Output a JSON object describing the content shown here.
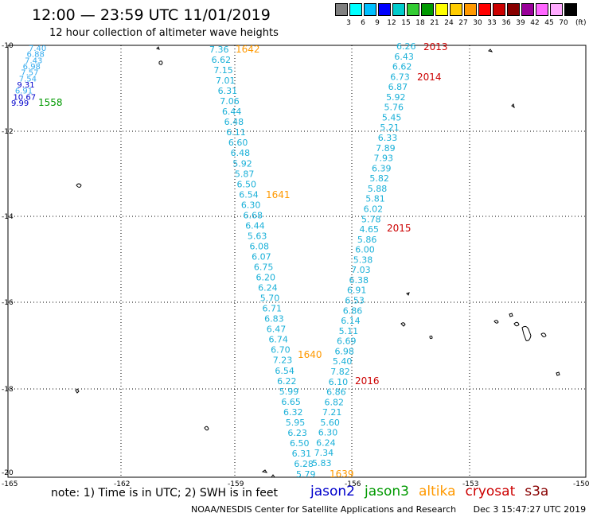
{
  "header": {
    "title": "12:00 — 23:59 UTC 11/01/2019",
    "subtitle": "12 hour collection of altimeter wave heights"
  },
  "legend": {
    "labels": [
      "3",
      "6",
      "9",
      "12",
      "15",
      "18",
      "21",
      "24",
      "27",
      "30",
      "33",
      "36",
      "39",
      "42",
      "45",
      "70"
    ],
    "unit": "(ft)",
    "colors": [
      "#808080",
      "#00ffff",
      "#00bfff",
      "#0000ff",
      "#00cccc",
      "#33cc33",
      "#009900",
      "#ffff00",
      "#ffcc00",
      "#ff9900",
      "#ff0000",
      "#cc0000",
      "#880000",
      "#990099",
      "#ff66ff",
      "#ffaaff",
      "#000000"
    ]
  },
  "map": {
    "y_ticks": [
      "-10",
      "-12",
      "-14",
      "-16",
      "-18",
      "-20"
    ],
    "x_ticks": [
      "-165",
      "-162",
      "-159",
      "-156",
      "-153",
      "-150"
    ],
    "pass_times": [
      {
        "label": "1558",
        "sat": "jason3"
      },
      {
        "label": "1642",
        "sat": "altika"
      },
      {
        "label": "1641",
        "sat": "altika"
      },
      {
        "label": "1640",
        "sat": "altika"
      },
      {
        "label": "1639",
        "sat": "altika"
      },
      {
        "label": "2013",
        "sat": "cryosat"
      },
      {
        "label": "2014",
        "sat": "cryosat"
      },
      {
        "label": "2015",
        "sat": "cryosat"
      },
      {
        "label": "2016",
        "sat": "cryosat"
      }
    ],
    "track_nw": [
      "7.40",
      "6.88",
      "7.43",
      "6.98",
      "7.57",
      "7.54",
      "9.31",
      "6.91",
      "10.67",
      "9.99"
    ],
    "track_a": [
      "7.36",
      "6.62",
      "7.15",
      "7.01",
      "6.31",
      "7.06",
      "6.44",
      "6.48",
      "6.11",
      "6.60",
      "6.48",
      "5.92",
      "5.87",
      "6.50",
      "6.54",
      "6.30",
      "6.68",
      "6.44",
      "5.63",
      "6.08",
      "6.07",
      "6.75",
      "6.20",
      "6.24",
      "5.70",
      "6.71",
      "6.83",
      "6.47",
      "6.74",
      "6.70",
      "7.23",
      "6.54",
      "6.22",
      "5.99",
      "6.65",
      "6.32",
      "5.95",
      "6.23",
      "6.50",
      "6.31",
      "6.28",
      "5.79"
    ],
    "track_b": [
      "6.26",
      "6.43",
      "6.62",
      "6.73",
      "6.87",
      "5.92",
      "5.76",
      "5.45",
      "5.21",
      "6.33",
      "7.89",
      "7.93",
      "6.39",
      "5.82",
      "5.88",
      "5.81",
      "6.02",
      "5.78",
      "4.65",
      "5.86",
      "6.00",
      "5.38",
      "7.03",
      "6.38",
      "6.91",
      "6.53",
      "6.86",
      "6.14",
      "5.11",
      "6.69",
      "6.98",
      "5.40",
      "7.82",
      "6.10",
      "6.86",
      "6.82",
      "7.21",
      "5.60",
      "6.30",
      "6.24",
      "7.34",
      "5.83"
    ]
  },
  "footer": {
    "note": "note:  1) Time is in UTC;  2) SWH is in feet",
    "satellites": [
      {
        "name": "jason2",
        "color": "#0000cc"
      },
      {
        "name": "jason3",
        "color": "#009900"
      },
      {
        "name": "altika",
        "color": "#ff9900"
      },
      {
        "name": "cryosat",
        "color": "#cc0000"
      },
      {
        "name": "s3a",
        "color": "#880000"
      }
    ],
    "credit": "NOAA/NESDIS Center for Satellite Applications and Research",
    "timestamp": "Dec  3 15:47:27 UTC 2019"
  }
}
